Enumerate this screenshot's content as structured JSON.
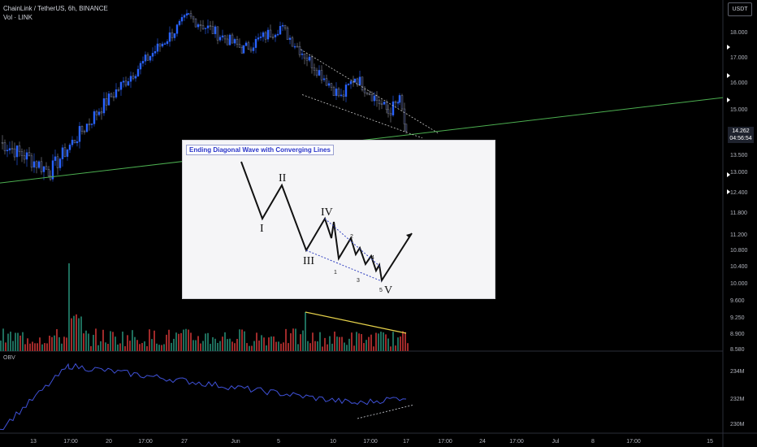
{
  "header": {
    "symbol_line": "ChainLink / TetherUS, 6h, BINANCE",
    "vol_line": "Vol · LINK",
    "currency_button": "USDT",
    "obv_label": "OBV"
  },
  "price_tag": {
    "price": "14.262",
    "countdown": "04:56:54"
  },
  "colors": {
    "up": "#2962ff",
    "down": "#0f1533",
    "support_line": "#4caf50",
    "vol_up": "#1e6e5c",
    "vol_down": "#a02a2a",
    "obv_line": "#3f51d8",
    "trend_line": "#e6d24a",
    "inset_wave": "#111111",
    "inset_channel": "#3040c0"
  },
  "chart_data": [
    {
      "type": "candlestick",
      "name": "price",
      "y_axis_ticks": [
        "18.000",
        "17.000",
        "16.000",
        "15.000",
        "13.500",
        "13.000",
        "12.400",
        "11.800",
        "11.200",
        "10.800",
        "10.400",
        "10.000",
        "9.600",
        "9.250",
        "8.900",
        "8.580"
      ],
      "x_axis_ticks": [
        "13",
        "17:00",
        "20",
        "17:00",
        "27",
        "Jun",
        "5",
        "10",
        "17:00",
        "17",
        "17:00",
        "24",
        "17:00",
        "Jul",
        "8",
        "17:00",
        "15"
      ],
      "key_points": [
        {
          "label": "start",
          "price": 13.9
        },
        {
          "label": "low",
          "price": 13.0
        },
        {
          "label": "rally_top",
          "price": 18.6
        },
        {
          "label": "pullback",
          "price": 17.3
        },
        {
          "label": "retest",
          "price": 18.2
        },
        {
          "label": "wave_1_low",
          "price": 15.4
        },
        {
          "label": "wave_peak",
          "price": 16.2
        },
        {
          "label": "wave_low",
          "price": 14.9
        },
        {
          "label": "wave_peak_2",
          "price": 15.3
        },
        {
          "label": "last",
          "price": 14.262
        }
      ],
      "support_line": {
        "start_price": 12.9,
        "end_price": 15.3
      },
      "wedge_upper": {
        "start_price": 17.3,
        "end_price": 14.3
      },
      "wedge_lower": {
        "start_price": 15.5,
        "end_price": 14.2
      }
    },
    {
      "type": "bar",
      "name": "volume",
      "trend": "declining"
    },
    {
      "type": "line",
      "name": "OBV",
      "y_axis_ticks": [
        "234M",
        "232M",
        "230M"
      ],
      "key_points": [
        {
          "label": "early",
          "value": 229.6
        },
        {
          "label": "jump",
          "value": 234.5
        },
        {
          "label": "drop_low",
          "value": 231.6
        },
        {
          "label": "final",
          "value": 232.1
        }
      ]
    },
    {
      "type": "diagram",
      "title": "Ending Diagonal Wave with Converging Lines",
      "wave_labels": [
        "I",
        "II",
        "III",
        "IV",
        "V"
      ],
      "sub_wave_labels": [
        "1",
        "2",
        "3",
        "4",
        "5"
      ]
    }
  ]
}
